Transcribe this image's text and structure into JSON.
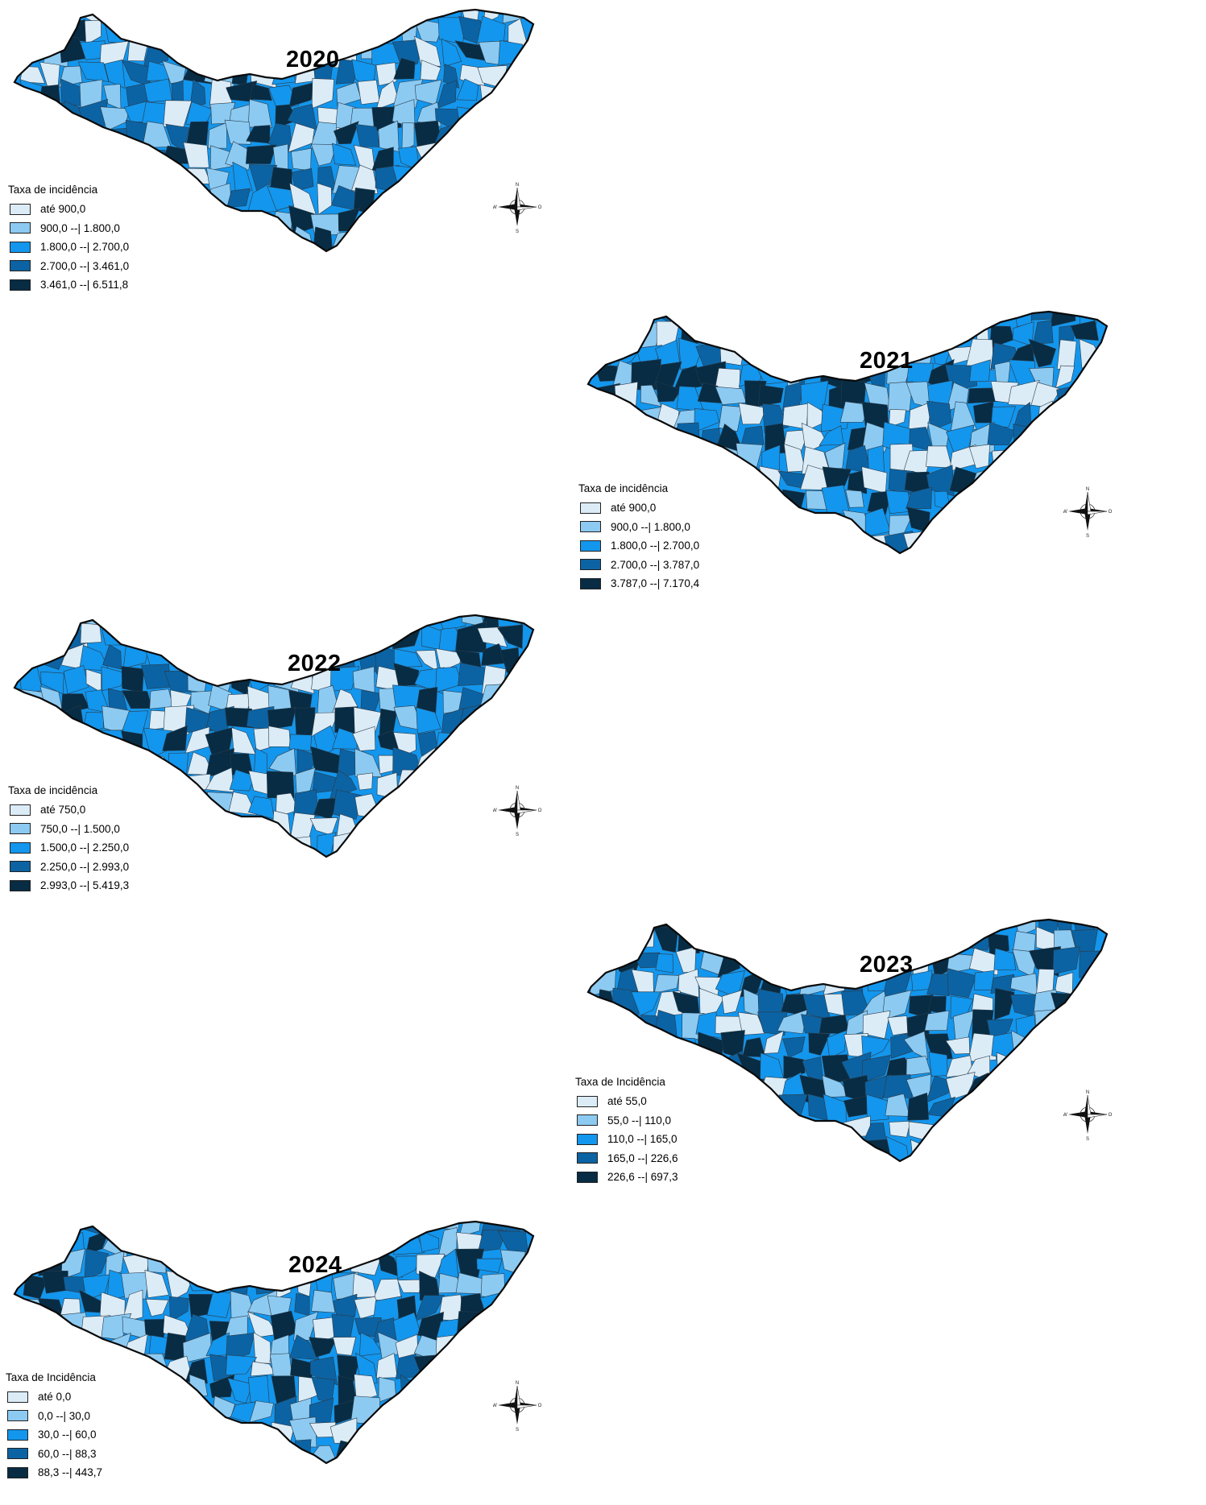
{
  "colors": {
    "class1": "#dcecf7",
    "class2": "#8ccaf2",
    "class3": "#1396ed",
    "class4": "#0c63a3",
    "class5": "#072c44",
    "outline": "#0a0a0a"
  },
  "maps": [
    {
      "year": "2020",
      "legend_title": "Taxa de incidência",
      "legend": [
        "até 900,0",
        "900,0 --| 1.800,0",
        "1.800,0 --| 2.700,0",
        "2.700,0 --| 3.461,0",
        "3.461,0 --| 6.511,8"
      ]
    },
    {
      "year": "2021",
      "legend_title": "Taxa de incidência",
      "legend": [
        "até 900,0",
        "900,0 --| 1.800,0",
        "1.800,0 --| 2.700,0",
        "2.700,0 --| 3.787,0",
        "3.787,0 --| 7.170,4"
      ]
    },
    {
      "year": "2022",
      "legend_title": "Taxa de incidência",
      "legend": [
        "até 750,0",
        "750,0 --| 1.500,0",
        "1.500,0 --| 2.250,0",
        "2.250,0 --| 2.993,0",
        "2.993,0 --| 5.419,3"
      ]
    },
    {
      "year": "2023",
      "legend_title": "Taxa de Incidência",
      "legend": [
        "até 55,0",
        "55,0 --| 110,0",
        "110,0 --| 165,0",
        "165,0 --| 226,6",
        "226,6 --| 697,3"
      ]
    },
    {
      "year": "2024",
      "legend_title": "Taxa de Incidência",
      "legend": [
        "até 0,0",
        "0,0 --| 30,0",
        "30,0 --| 60,0",
        "60,0 --| 88,3",
        "88,3 --| 443,7"
      ]
    }
  ],
  "compass": {
    "n": "N",
    "s": "S",
    "w": "W",
    "e": "O"
  }
}
